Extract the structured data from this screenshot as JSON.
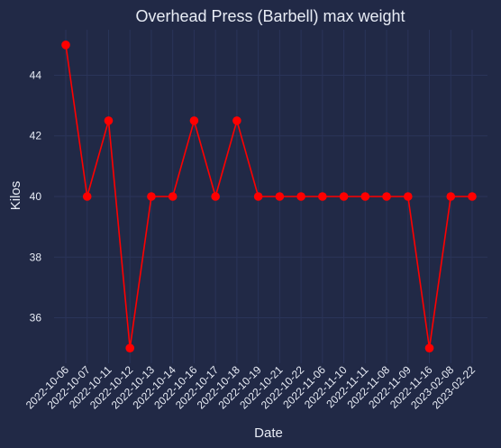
{
  "chart_data": {
    "type": "line",
    "title": "Overhead Press (Barbell) max weight",
    "xlabel": "Date",
    "ylabel": "Kilos",
    "ylim": [
      34.5,
      45.5
    ],
    "yticks": [
      36,
      38,
      40,
      42,
      44
    ],
    "grid": true,
    "categories": [
      "2022-10-06",
      "2022-10-07",
      "2022-10-11",
      "2022-10-12",
      "2022-10-13",
      "2022-10-14",
      "2022-10-16",
      "2022-10-17",
      "2022-10-18",
      "2022-10-19",
      "2022-10-21",
      "2022-10-22",
      "2022-11-06",
      "2022-11-10",
      "2022-11-11",
      "2022-11-08",
      "2022-11-09",
      "2022-11-16",
      "2023-02-08",
      "2023-02-22"
    ],
    "values": [
      45,
      40,
      42.5,
      35,
      40,
      40,
      42.5,
      40,
      42.5,
      40,
      40,
      40,
      40,
      40,
      40,
      40,
      40,
      35,
      40,
      40
    ],
    "colors": {
      "background": "#212946",
      "grid": "#2a3459",
      "line": "#ff0000",
      "text": "#e8ecf5"
    }
  }
}
